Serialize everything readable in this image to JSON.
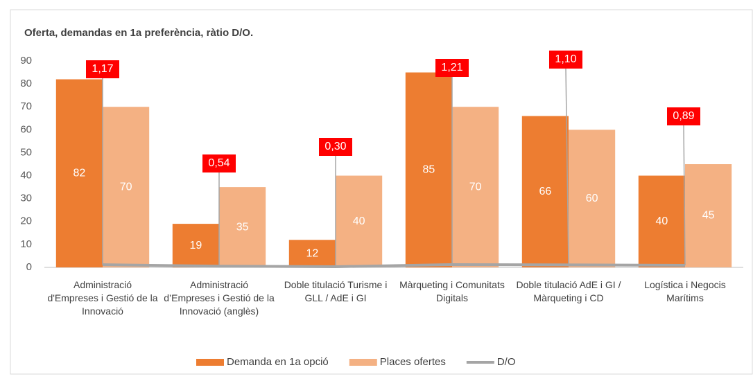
{
  "chart_data": {
    "type": "bar",
    "title": "Oferta, demandas en 1a preferència, ràtio D/O.",
    "categories": [
      "Administració d'Empreses i Gestió de la Innovació",
      "Administració d’Empreses i Gestió de la Innovació (anglès)",
      "Doble titulació Turisme i GLL / AdE i GI",
      "Màrqueting i Comunitats Digitals",
      "Doble titulació AdE i GI / Màrqueting i CD",
      "Logística i Negocis Marítims"
    ],
    "series": [
      {
        "name": "Demanda en 1a opció",
        "color": "#ed7d31",
        "values": [
          82,
          19,
          12,
          85,
          66,
          40
        ]
      },
      {
        "name": "Places ofertes",
        "color": "#f4b183",
        "values": [
          70,
          35,
          40,
          70,
          60,
          45
        ]
      },
      {
        "name": "D/O",
        "type": "line",
        "color": "#a5a5a5",
        "values": [
          1.17,
          0.54,
          0.3,
          1.21,
          1.1,
          0.89
        ],
        "value_labels": [
          "1,17",
          "0,54",
          "0,30",
          "1,21",
          "1,10",
          "0,89"
        ]
      }
    ],
    "ylim": [
      0,
      90
    ],
    "yticks": [
      0,
      10,
      20,
      30,
      40,
      50,
      60,
      70,
      80,
      90
    ],
    "grid": false,
    "legend": "bottom"
  }
}
